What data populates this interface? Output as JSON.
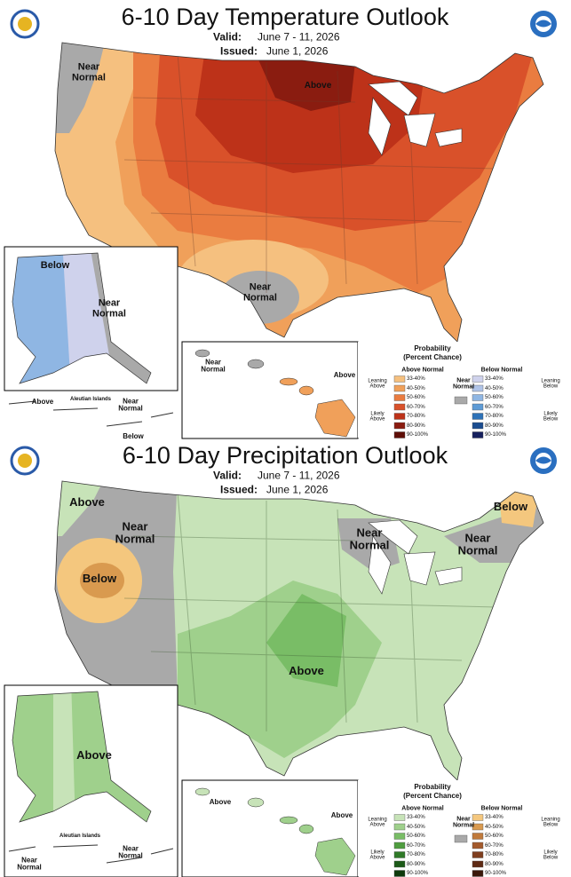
{
  "panels": [
    {
      "title": "6-10 Day Temperature Outlook",
      "valid_label": "Valid:",
      "valid": "June 7 - 11, 2026",
      "issued_label": "Issued:",
      "issued": "June 1, 2026",
      "regions": [
        "Near Normal",
        "Above",
        "Near Normal",
        "Below",
        "Near Normal",
        "Near Normal",
        "Above",
        "Above",
        "Aleutian Islands",
        "Near Normal",
        "Below"
      ],
      "legend": {
        "title": "Probability",
        "subtitle": "(Percent Chance)",
        "above_header": "Above Normal",
        "below_header": "Below Normal",
        "near": "Near Normal",
        "leaning_above": "Leaning Above",
        "likely_above": "Likely Above",
        "leaning_below": "Leaning Below",
        "likely_below": "Likely Below",
        "ranges": [
          "33-40%",
          "40-50%",
          "50-60%",
          "60-70%",
          "70-80%",
          "80-90%",
          "90-100%"
        ],
        "above_colors": [
          "#f5c07f",
          "#f0a05a",
          "#ea7c40",
          "#d9512a",
          "#bd3219",
          "#8a1c10",
          "#5e0d06"
        ],
        "below_colors": [
          "#cfd2ec",
          "#b0c4e8",
          "#8fb6e3",
          "#5e9bd6",
          "#2e72b8",
          "#1b4c8f",
          "#16205e"
        ],
        "near_color": "#a9a9a9"
      }
    },
    {
      "title": "6-10 Day Precipitation Outlook",
      "valid_label": "Valid:",
      "valid": "June 7 - 11, 2026",
      "issued_label": "Issued:",
      "issued": "June 1, 2026",
      "regions": [
        "Above",
        "Near Normal",
        "Below",
        "Below",
        "Near Normal",
        "Near Normal",
        "Above",
        "Above",
        "Above",
        "Above",
        "Aleutian Islands",
        "Near Normal",
        "Near Normal"
      ],
      "legend": {
        "title": "Probability",
        "subtitle": "(Percent Chance)",
        "above_header": "Above Normal",
        "below_header": "Below Normal",
        "near": "Near Normal",
        "leaning_above": "Leaning Above",
        "likely_above": "Likely Above",
        "leaning_below": "Leaning Below",
        "likely_below": "Likely Below",
        "ranges": [
          "33-40%",
          "40-50%",
          "50-60%",
          "60-70%",
          "70-80%",
          "80-90%",
          "90-100%"
        ],
        "above_colors": [
          "#c7e3b8",
          "#9fd08c",
          "#79bd66",
          "#4f9d3f",
          "#2f7a27",
          "#1c5a18",
          "#0e3a0c"
        ],
        "below_colors": [
          "#f4c77e",
          "#d99a4f",
          "#c07a3c",
          "#a35a2c",
          "#7f3e1e",
          "#5e2a14",
          "#3a180a"
        ],
        "near_color": "#a9a9a9"
      }
    }
  ]
}
